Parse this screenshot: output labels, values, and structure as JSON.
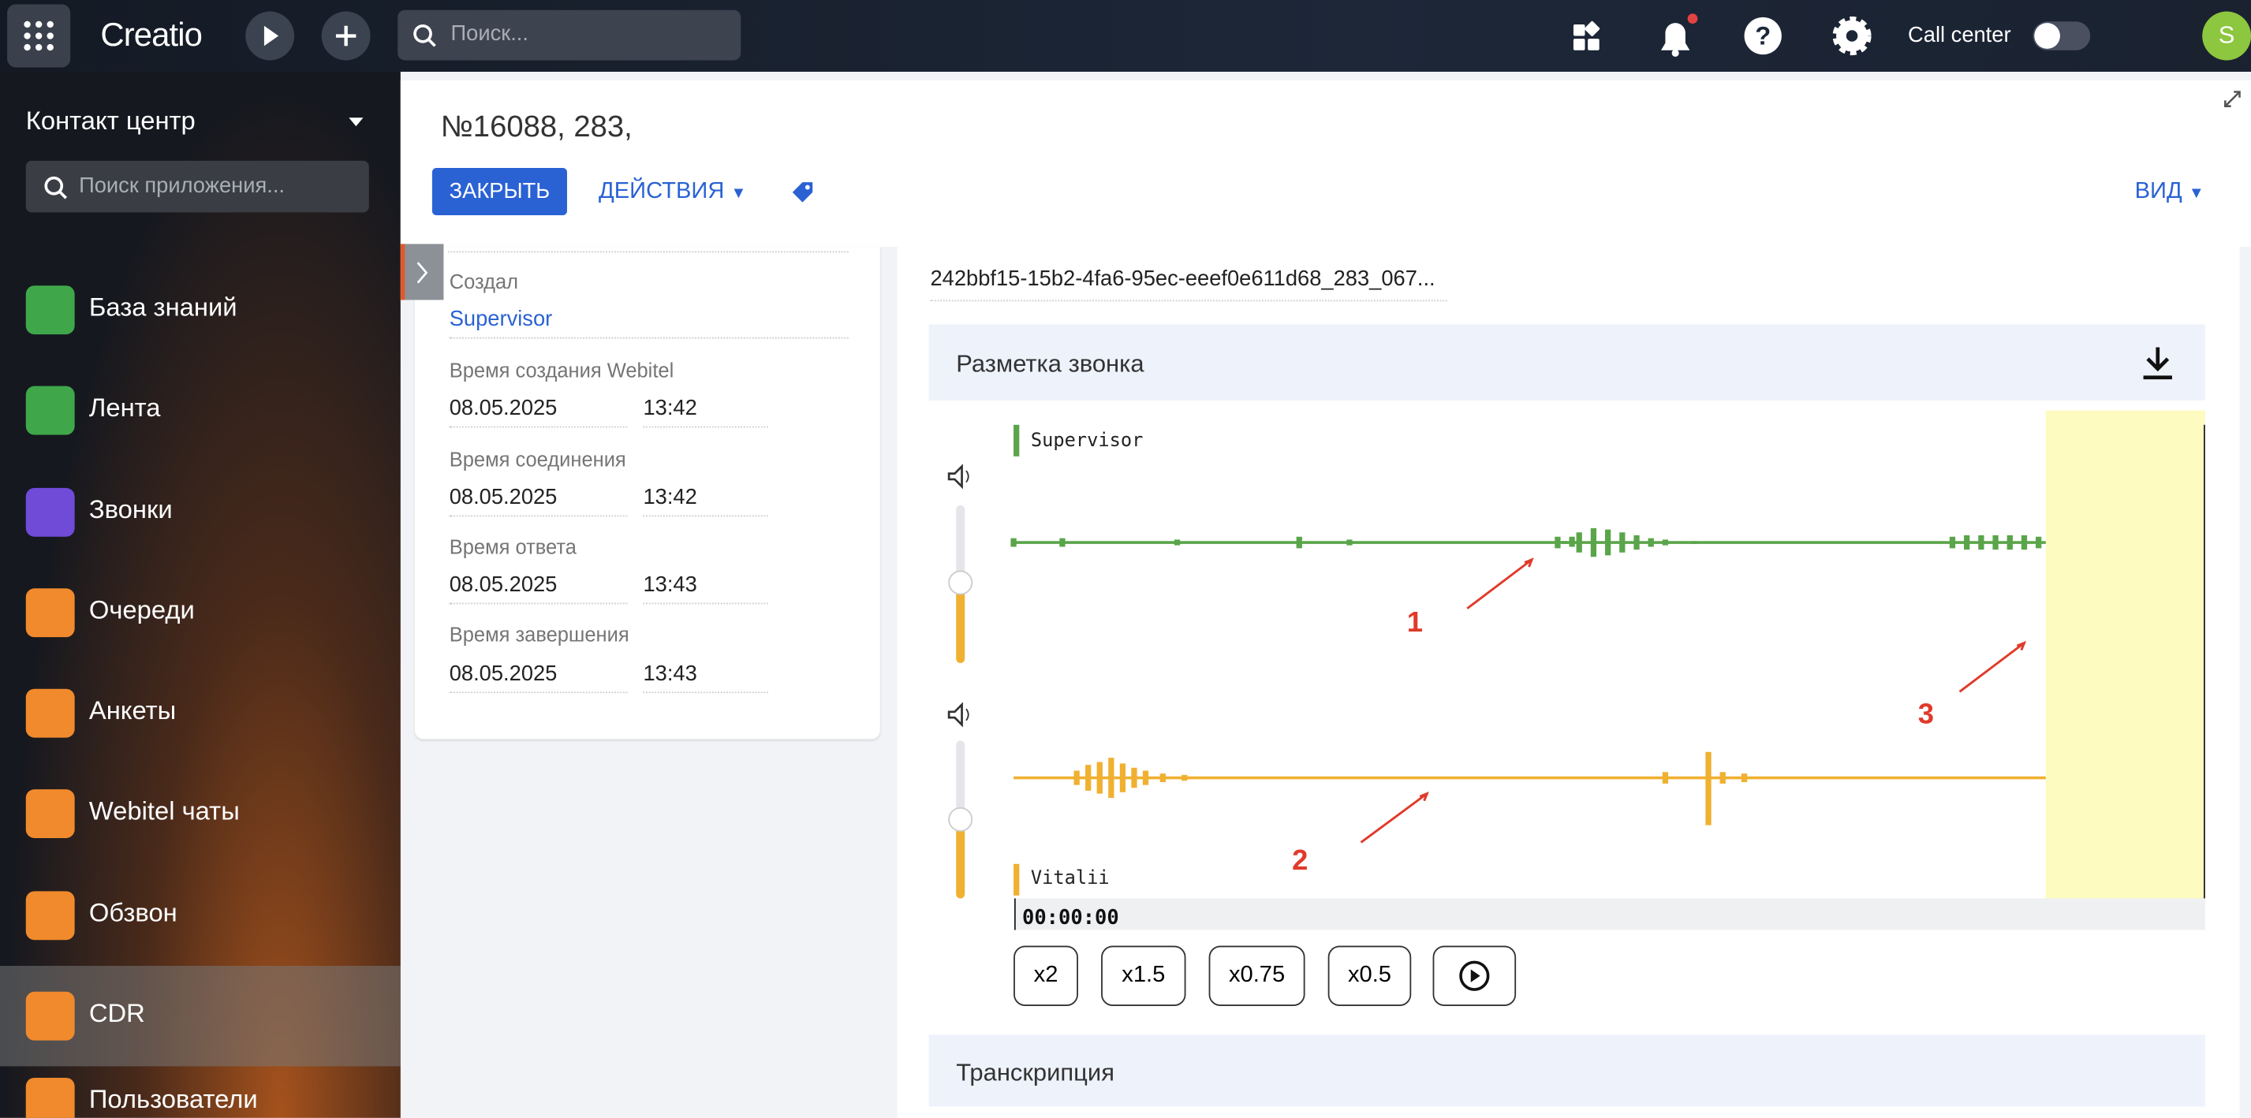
{
  "topbar": {
    "logo": "Creatio",
    "search_placeholder": "Поиск...",
    "call_center": "Call center",
    "avatar": "S"
  },
  "sidebar": {
    "workspace": "Контакт центр",
    "search_placeholder": "Поиск приложения...",
    "items": [
      "База знаний",
      "Лента",
      "Звонки",
      "Очереди",
      "Анкеты",
      "Webitel чаты",
      "Обзвон",
      "CDR",
      "Пользователи"
    ]
  },
  "record": {
    "title": "№16088, 283,",
    "close": "ЗАКРЫТЬ",
    "actions": "ДЕЙСТВИЯ",
    "view": "ВИД"
  },
  "created_by": {
    "label": "Создал",
    "value": "Supervisor"
  },
  "times": [
    {
      "label": "Время создания Webitel",
      "date": "08.05.2025",
      "time": "13:42"
    },
    {
      "label": "Время соединения",
      "date": "08.05.2025",
      "time": "13:42"
    },
    {
      "label": "Время ответа",
      "date": "08.05.2025",
      "time": "13:43"
    },
    {
      "label": "Время завершения",
      "date": "08.05.2025",
      "time": "13:43"
    }
  ],
  "file_name": "242bbf15-15b2-4fa6-95ec-eeef0e611d68_283_067...",
  "call_markup": {
    "title": "Разметка звонка",
    "channels": [
      "Supervisor",
      "Vitalii"
    ],
    "timestamp": "00:00:00",
    "speeds": [
      "x2",
      "x1.5",
      "x0.75",
      "x0.5"
    ],
    "annotations": [
      "1",
      "2",
      "3"
    ]
  },
  "transcription": {
    "title": "Транскрипция"
  }
}
